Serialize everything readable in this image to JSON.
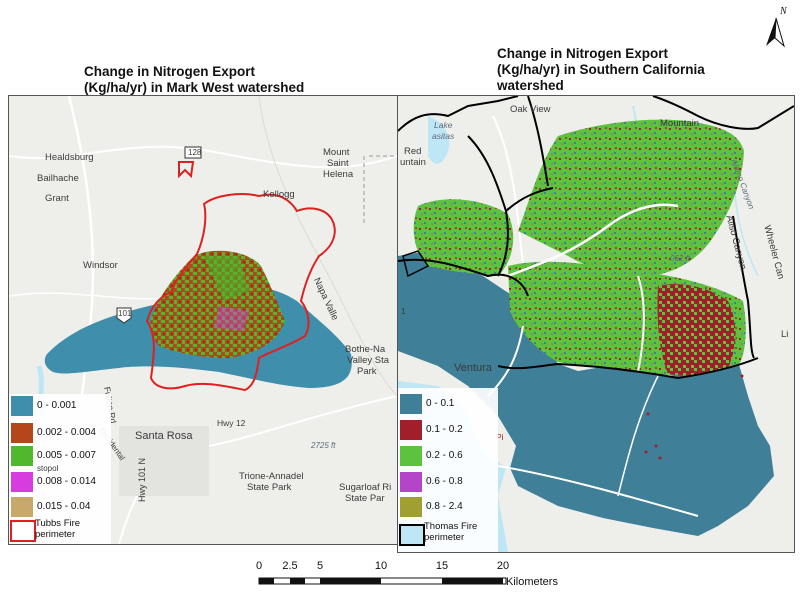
{
  "left_map": {
    "title_line1": "Change in Nitrogen Export",
    "title_line2": "(Kg/ha/yr) in Mark West watershed",
    "places": {
      "healdsburg": "Healdsburg",
      "bailhache": "Bailhache",
      "grant": "Grant",
      "windsor": "Windsor",
      "kellogg": "Kellogg",
      "mount": "Mount",
      "saint": "Saint",
      "helena": "Helena",
      "hwy128": "128",
      "hwy101": "101",
      "fulton": "Fulton Rd",
      "santa_rosa": "Santa Rosa",
      "hwy12": "Hwy 12",
      "occidental": "Occidental",
      "hwy101n": "Hwy 101 N",
      "sebastopol": "stopol",
      "napa_valley": "Napa Valle",
      "bothe1": "Bothe-Na",
      "bothe2": "Valley Sta",
      "bothe3": "Park",
      "elev": "2725 ft",
      "trione1": "Trione-Annadel",
      "trione2": "State Park",
      "sugarloaf1": "Sugarloaf Ri",
      "sugarloaf2": "State Par"
    },
    "legend": [
      {
        "label": "0 - 0.001",
        "color": "#3f8fac"
      },
      {
        "label": "0.002 - 0.004",
        "color": "#b5451b"
      },
      {
        "label": "0.005 - 0.007",
        "color": "#4fb82c"
      },
      {
        "label": "0.008 - 0.014",
        "color": "#d63ce0"
      },
      {
        "label": "0.015 - 0.04",
        "color": "#c9a86c"
      }
    ],
    "perimeter_label_1": "Tubbs Fire",
    "perimeter_label_2": "perimeter",
    "perimeter_color": "#e02020"
  },
  "right_map": {
    "title_line1": "Change in Nitrogen Export",
    "title_line2": "(Kg/ha/yr) in Southern California",
    "title_line3": "watershed",
    "places": {
      "oak_view": "Oak View",
      "lake": "Lake",
      "casitas": "asitas",
      "red": "Red",
      "mountain": "untain",
      "mountain_top": "Mountain",
      "elev": "062 ft",
      "alamo": "Alamo Canyon",
      "aliso": "Aliso Canyon",
      "wheeler": "Wheeler Can",
      "ventura": "Ventura",
      "pi": "Pi",
      "hwy1": "1",
      "li": "Li"
    },
    "legend": [
      {
        "label": "0 - 0.1",
        "color": "#3f7f98"
      },
      {
        "label": "0.1 - 0.2",
        "color": "#a11f2a"
      },
      {
        "label": "0.2 - 0.6",
        "color": "#5cc43c"
      },
      {
        "label": "0.6 - 0.8",
        "color": "#b545c8"
      },
      {
        "label": "0.8 - 2.4",
        "color": "#a0a032"
      }
    ],
    "perimeter_label_1": "Thomas Fire",
    "perimeter_label_2": "perimeter",
    "perimeter_color": "#000000"
  },
  "north_label": "N",
  "scalebar": {
    "ticks": [
      "0",
      "2.5",
      "5",
      "10",
      "15",
      "20"
    ],
    "units": "Kilometers"
  },
  "colors": {
    "basemap": "#eeefea",
    "water": "#bfe6f5",
    "road": "#ffffff"
  }
}
